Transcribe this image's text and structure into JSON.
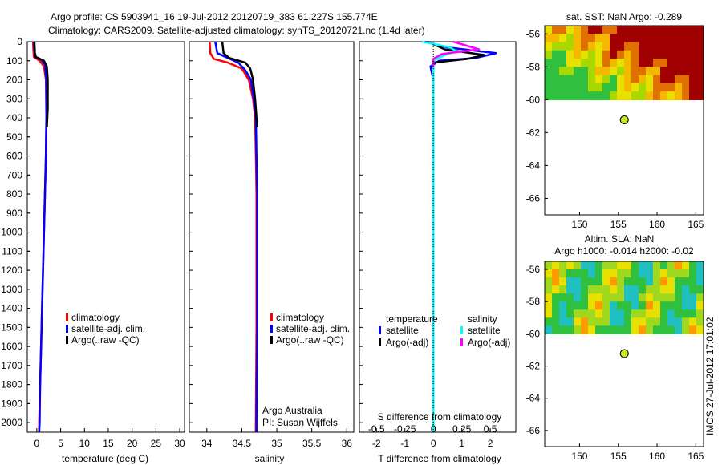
{
  "header": {
    "title_line1": "Argo profile: CS 5903941_16 19-Jul-2012 20120719_383 61.227S 155.774E",
    "title_line2": "Climatology: CARS2009. Satellite-adjusted climatology: synTS_20120721.nc (1.4d later)"
  },
  "footer": {
    "stamp": "IMOS 27-Jul-2012 17:01:02"
  },
  "colors": {
    "clim": "#ff0000",
    "sat": "#0000ff",
    "argo": "#000000",
    "sal_sat": "#00ffff",
    "sal_argo": "#ff00ff"
  },
  "chart_data": [
    {
      "type": "line",
      "id": "temperature",
      "xlabel": "temperature (deg C)",
      "xlim": [
        -2,
        31
      ],
      "xticks": [
        0,
        5,
        10,
        15,
        20,
        25,
        30
      ],
      "ylim": [
        0,
        2050
      ],
      "yticks": [
        0,
        100,
        200,
        300,
        400,
        500,
        600,
        700,
        800,
        900,
        1000,
        1100,
        1200,
        1300,
        1400,
        1500,
        1600,
        1700,
        1800,
        1900,
        2000
      ],
      "legend": [
        "climatology",
        "satellite-adj. clim.",
        "Argo(..raw -QC)"
      ],
      "series": [
        {
          "name": "climatology",
          "color": "#ff0000",
          "points": [
            [
              -0.8,
              0
            ],
            [
              -0.7,
              50
            ],
            [
              -0.6,
              80
            ],
            [
              0.6,
              100
            ],
            [
              1.5,
              130
            ],
            [
              1.9,
              200
            ],
            [
              2.0,
              400
            ],
            [
              1.9,
              600
            ],
            [
              1.7,
              800
            ],
            [
              1.5,
              1000
            ],
            [
              1.3,
              1200
            ],
            [
              1.1,
              1400
            ],
            [
              0.9,
              1600
            ],
            [
              0.7,
              1800
            ],
            [
              0.5,
              2000
            ],
            [
              0.5,
              2050
            ]
          ]
        },
        {
          "name": "satellite-adj. clim.",
          "color": "#0000ff",
          "points": [
            [
              -0.6,
              0
            ],
            [
              -0.5,
              50
            ],
            [
              -0.3,
              80
            ],
            [
              1.0,
              95
            ],
            [
              1.7,
              120
            ],
            [
              2.0,
              200
            ],
            [
              2.0,
              400
            ],
            [
              1.9,
              600
            ],
            [
              1.7,
              800
            ],
            [
              1.5,
              1000
            ],
            [
              1.3,
              1200
            ],
            [
              1.1,
              1400
            ],
            [
              0.9,
              1600
            ],
            [
              0.7,
              1800
            ],
            [
              0.6,
              2000
            ],
            [
              0.5,
              2050
            ]
          ]
        },
        {
          "name": "Argo(..raw -QC)",
          "color": "#000000",
          "points": [
            [
              -0.5,
              0
            ],
            [
              -0.4,
              60
            ],
            [
              -0.2,
              80
            ],
            [
              1.5,
              100
            ],
            [
              2.1,
              130
            ],
            [
              2.3,
              200
            ],
            [
              2.3,
              350
            ],
            [
              2.1,
              450
            ]
          ]
        }
      ]
    },
    {
      "type": "line",
      "id": "salinity",
      "xlabel": "salinity",
      "xlim": [
        33.75,
        36.1
      ],
      "xticks": [
        34,
        34.5,
        35,
        35.5,
        36
      ],
      "xticklabels": [
        "34",
        "34.5",
        "35",
        "35.5",
        "36"
      ],
      "ylim": [
        0,
        2050
      ],
      "legend": [
        "climatology",
        "satellite-adj. clim.",
        "Argo(..raw -QC)"
      ],
      "annotation": [
        "Argo Australia",
        "PI: Susan Wijffels"
      ],
      "series": [
        {
          "name": "climatology",
          "color": "#ff0000",
          "points": [
            [
              34.04,
              0
            ],
            [
              34.05,
              60
            ],
            [
              34.1,
              90
            ],
            [
              34.3,
              110
            ],
            [
              34.5,
              140
            ],
            [
              34.6,
              200
            ],
            [
              34.66,
              300
            ],
            [
              34.69,
              400
            ],
            [
              34.7,
              600
            ],
            [
              34.71,
              800
            ],
            [
              34.71,
              1000
            ],
            [
              34.71,
              1500
            ],
            [
              34.7,
              2000
            ],
            [
              34.7,
              2050
            ]
          ]
        },
        {
          "name": "satellite-adj. clim.",
          "color": "#0000ff",
          "points": [
            [
              34.12,
              0
            ],
            [
              34.15,
              60
            ],
            [
              34.3,
              85
            ],
            [
              34.45,
              110
            ],
            [
              34.55,
              150
            ],
            [
              34.63,
              200
            ],
            [
              34.67,
              300
            ],
            [
              34.7,
              400
            ],
            [
              34.71,
              600
            ],
            [
              34.72,
              800
            ],
            [
              34.72,
              1000
            ],
            [
              34.72,
              1500
            ],
            [
              34.71,
              2000
            ],
            [
              34.71,
              2050
            ]
          ]
        },
        {
          "name": "Argo(..raw -QC)",
          "color": "#000000",
          "points": [
            [
              34.22,
              0
            ],
            [
              34.24,
              60
            ],
            [
              34.32,
              85
            ],
            [
              34.55,
              110
            ],
            [
              34.62,
              140
            ],
            [
              34.66,
              200
            ],
            [
              34.69,
              300
            ],
            [
              34.71,
              400
            ],
            [
              34.72,
              450
            ]
          ]
        }
      ]
    },
    {
      "type": "line",
      "id": "difference",
      "xlabel": "T difference from climatology",
      "xlabel_top": "S difference from climatology",
      "xlim": [
        -2.6,
        2.9
      ],
      "xticks": [
        -2,
        -1,
        0,
        1,
        2
      ],
      "xticklabels_top": [
        "-0.5",
        "-0.25",
        "0",
        "0.25",
        "0.5"
      ],
      "ylim": [
        0,
        2050
      ],
      "legend_headers": [
        "temperature",
        "salinity"
      ],
      "legend": [
        "satellite",
        "Argo(-adj)",
        "satellite",
        "Argo(-adj)"
      ],
      "series": [
        {
          "name": "temperature satellite",
          "color": "#0000ff",
          "points": [
            [
              -0.3,
              0
            ],
            [
              0.5,
              30
            ],
            [
              2.2,
              60
            ],
            [
              1.5,
              85
            ],
            [
              0.2,
              100
            ],
            [
              -0.1,
              130
            ],
            [
              0,
              200
            ],
            [
              0,
              400
            ],
            [
              0,
              2050
            ]
          ]
        },
        {
          "name": "temperature Argo(-adj)",
          "color": "#000000",
          "points": [
            [
              -0.2,
              0
            ],
            [
              0.4,
              40
            ],
            [
              1.8,
              70
            ],
            [
              1.2,
              90
            ],
            [
              0,
              110
            ],
            [
              0,
              200
            ],
            [
              0,
              400
            ]
          ]
        },
        {
          "name": "salinity satellite",
          "color": "#00ffff",
          "points": [
            [
              -0.4,
              0
            ],
            [
              0.6,
              30
            ],
            [
              0.8,
              50
            ],
            [
              0.4,
              70
            ],
            [
              0,
              100
            ],
            [
              0,
              2050
            ]
          ]
        },
        {
          "name": "salinity Argo(-adj)",
          "color": "#ff00ff",
          "points": [
            [
              0.7,
              0
            ],
            [
              1.6,
              40
            ],
            [
              0.3,
              65
            ],
            [
              0,
              90
            ],
            [
              0,
              130
            ]
          ]
        }
      ]
    },
    {
      "type": "heatmap",
      "id": "sst_map",
      "title": "sat. SST: NaN Argo: -0.289",
      "xlim": [
        145.5,
        166
      ],
      "ylim": [
        -67,
        -55.5
      ],
      "xticks": [
        150,
        155,
        160,
        165
      ],
      "yticks": [
        -56,
        -58,
        -60,
        -62,
        -64,
        -66
      ],
      "float_position": [
        155.774,
        -61.227
      ]
    },
    {
      "type": "heatmap",
      "id": "sla_map",
      "title_line1": "Altim. SLA: NaN",
      "title_line2": "Argo h1000: -0.014 h2000: -0.02",
      "xlim": [
        145.5,
        166
      ],
      "ylim": [
        -67,
        -55.5
      ],
      "xticks": [
        150,
        155,
        160,
        165
      ],
      "yticks": [
        -56,
        -58,
        -60,
        -62,
        -64,
        -66
      ],
      "float_position": [
        155.774,
        -61.227
      ]
    }
  ]
}
